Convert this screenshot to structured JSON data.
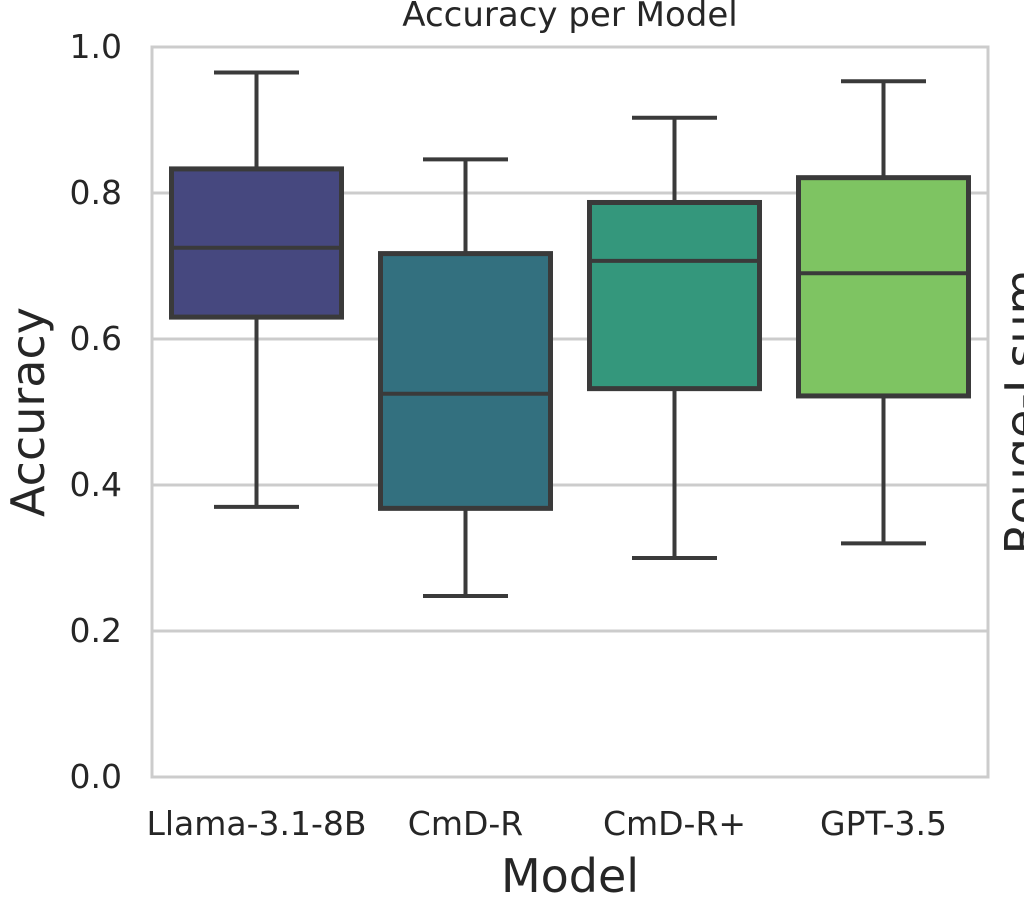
{
  "chart_data": {
    "type": "box",
    "title": "Accuracy per Model",
    "xlabel": "Model",
    "ylabel": "Accuracy",
    "secondary_ylabel_partial": "Rouge-Lsum",
    "ylim": [
      0.0,
      1.0
    ],
    "yticks": [
      0.0,
      0.2,
      0.4,
      0.6,
      0.8,
      1.0
    ],
    "ytick_labels": [
      "0.0",
      "0.2",
      "0.4",
      "0.6",
      "0.8",
      "1.0"
    ],
    "grid": true,
    "categories": [
      "Llama-3.1-8B",
      "CmD-R",
      "CmD-R+",
      "GPT-3.5"
    ],
    "boxes": [
      {
        "category": "Llama-3.1-8B",
        "whisker_low": 0.37,
        "q1": 0.63,
        "median": 0.725,
        "q3": 0.833,
        "whisker_high": 0.965,
        "color": "#46487f"
      },
      {
        "category": "CmD-R",
        "whisker_low": 0.248,
        "q1": 0.368,
        "median": 0.525,
        "q3": 0.717,
        "whisker_high": 0.846,
        "color": "#33707f"
      },
      {
        "category": "CmD-R+",
        "whisker_low": 0.3,
        "q1": 0.532,
        "median": 0.707,
        "q3": 0.787,
        "whisker_high": 0.903,
        "color": "#34977c"
      },
      {
        "category": "GPT-3.5",
        "whisker_low": 0.32,
        "q1": 0.522,
        "median": 0.69,
        "q3": 0.821,
        "whisker_high": 0.953,
        "color": "#7ec462"
      }
    ],
    "colors": {
      "grid": "#cccccc",
      "spine": "#cccccc",
      "box_edge": "#3a3a3a",
      "text": "#262626"
    }
  }
}
